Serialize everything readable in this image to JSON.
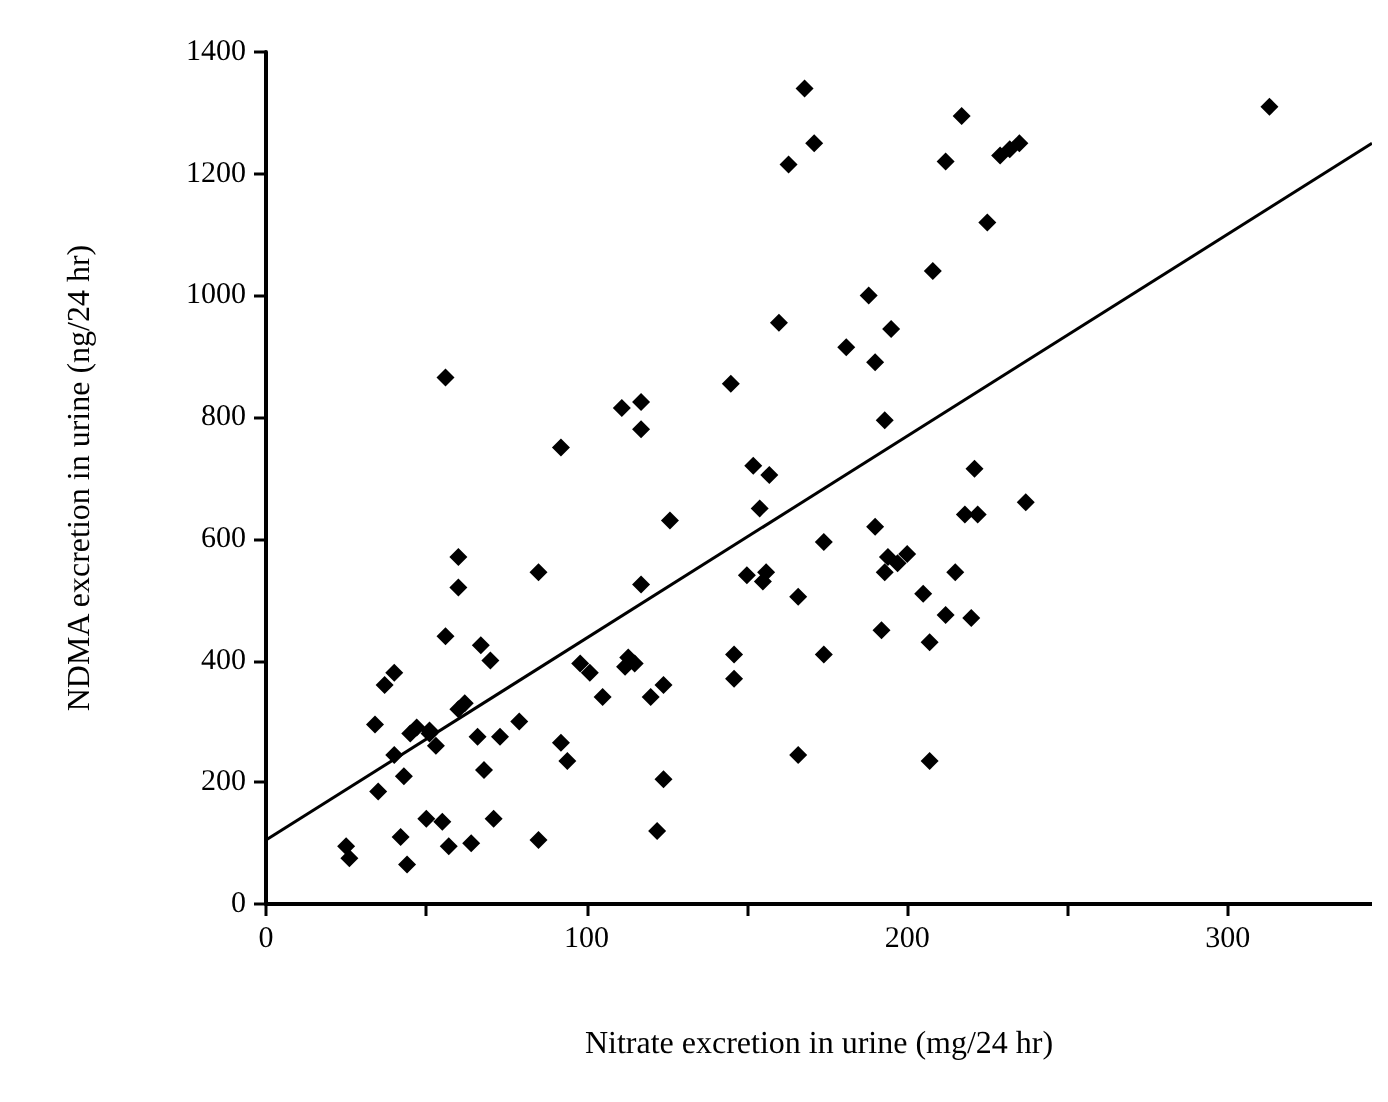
{
  "chart_data": {
    "type": "scatter",
    "xlabel": "Nitrate excretion in urine (mg/24 hr)",
    "ylabel": "NDMA excretion in urine (ng/24 hr)",
    "xlim": [
      0,
      345
    ],
    "ylim": [
      0,
      1400
    ],
    "xticks": [
      0,
      {
        "value": 50,
        "label": null
      },
      100,
      {
        "value": 150,
        "label": null
      },
      200,
      {
        "value": 250,
        "label": null
      },
      300
    ],
    "yticks": [
      0,
      200,
      400,
      600,
      800,
      1000,
      1200,
      1400
    ],
    "grid": false,
    "marker": "diamond",
    "series": [
      {
        "color": "#000000",
        "x": [
          168,
          171,
          163,
          217,
          212,
          232,
          235,
          229,
          225,
          313,
          160,
          208,
          188,
          195,
          181,
          190,
          193,
          145,
          117,
          111,
          117,
          56,
          92,
          152,
          157,
          221,
          237,
          154,
          126,
          190,
          218,
          222,
          174,
          200,
          194,
          197,
          193,
          215,
          150,
          156,
          155,
          117,
          85,
          60,
          60,
          70,
          67,
          166,
          205,
          212,
          220,
          192,
          207,
          146,
          174,
          146,
          166,
          207,
          25,
          26,
          34,
          37,
          40,
          35,
          40,
          42,
          44,
          45,
          47,
          51,
          53,
          43,
          50,
          55,
          56,
          60,
          62,
          64,
          57,
          66,
          68,
          71,
          73,
          79,
          85,
          92,
          94,
          98,
          101,
          105,
          112,
          113,
          115,
          120,
          122,
          124,
          124,
          51
        ],
        "values": [
          1340,
          1250,
          1215,
          1295,
          1220,
          1240,
          1250,
          1230,
          1120,
          1310,
          955,
          1040,
          1000,
          945,
          915,
          890,
          795,
          855,
          825,
          815,
          780,
          865,
          750,
          720,
          705,
          715,
          660,
          650,
          630,
          620,
          640,
          640,
          595,
          575,
          570,
          560,
          545,
          545,
          540,
          545,
          530,
          525,
          545,
          570,
          520,
          400,
          425,
          505,
          510,
          475,
          470,
          450,
          430,
          410,
          410,
          370,
          245,
          235,
          95,
          75,
          295,
          360,
          380,
          185,
          245,
          110,
          65,
          280,
          290,
          285,
          260,
          210,
          140,
          135,
          440,
          320,
          330,
          100,
          95,
          275,
          220,
          140,
          275,
          300,
          105,
          265,
          235,
          395,
          380,
          340,
          390,
          405,
          395,
          340,
          120,
          360,
          205,
          280
        ]
      },
      {
        "type": "line",
        "color": "#000000",
        "marker": "none",
        "line_style": "solid",
        "x": [
          0,
          345
        ],
        "values": [
          105,
          1250
        ]
      }
    ]
  }
}
